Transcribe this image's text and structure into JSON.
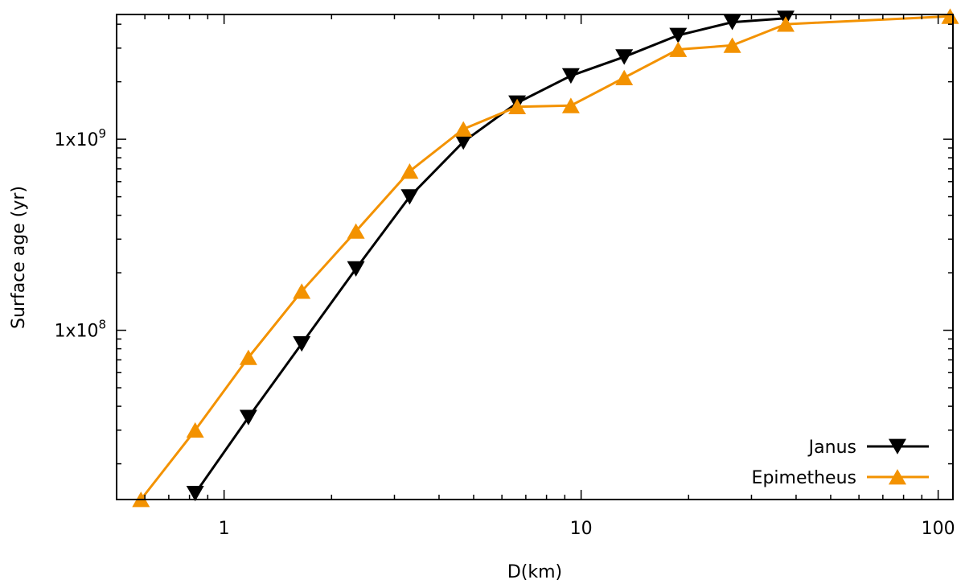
{
  "chart_data": {
    "type": "line",
    "title": "",
    "xlabel": "D(km)",
    "ylabel": "Surface age (yr)",
    "x_scale": "log",
    "y_scale": "log",
    "xlim": [
      0.5,
      110
    ],
    "ylim": [
      13000000,
      4500000000
    ],
    "grid": false,
    "legend_position": "bottom-right",
    "x_ticks": [
      {
        "value": 1,
        "label": "1"
      },
      {
        "value": 10,
        "label": "10"
      },
      {
        "value": 100,
        "label": "100"
      }
    ],
    "y_ticks": [
      {
        "value": 100000000,
        "base": "1x10",
        "exp": "8"
      },
      {
        "value": 1000000000,
        "base": "1x10",
        "exp": "9"
      }
    ],
    "series": [
      {
        "name": "Janus",
        "color": "#000000",
        "marker": "triangle-down",
        "points": [
          {
            "x": 0.83,
            "y": 14000000
          },
          {
            "x": 1.17,
            "y": 35000000
          },
          {
            "x": 1.65,
            "y": 85000000
          },
          {
            "x": 2.34,
            "y": 210000000
          },
          {
            "x": 3.31,
            "y": 500000000
          },
          {
            "x": 4.68,
            "y": 970000000
          },
          {
            "x": 6.62,
            "y": 1550000000
          },
          {
            "x": 9.36,
            "y": 2150000000
          },
          {
            "x": 13.2,
            "y": 2700000000
          },
          {
            "x": 18.7,
            "y": 3500000000
          },
          {
            "x": 26.5,
            "y": 4100000000
          },
          {
            "x": 37.4,
            "y": 4300000000
          }
        ]
      },
      {
        "name": "Epimetheus",
        "color": "#f39200",
        "marker": "triangle-up",
        "points": [
          {
            "x": 0.585,
            "y": 13000000
          },
          {
            "x": 0.83,
            "y": 30000000
          },
          {
            "x": 1.17,
            "y": 72000000
          },
          {
            "x": 1.65,
            "y": 160000000
          },
          {
            "x": 2.34,
            "y": 330000000
          },
          {
            "x": 3.31,
            "y": 680000000
          },
          {
            "x": 4.68,
            "y": 1130000000
          },
          {
            "x": 6.62,
            "y": 1480000000
          },
          {
            "x": 9.36,
            "y": 1500000000
          },
          {
            "x": 13.2,
            "y": 2100000000
          },
          {
            "x": 18.7,
            "y": 2950000000
          },
          {
            "x": 26.5,
            "y": 3100000000
          },
          {
            "x": 37.4,
            "y": 4000000000
          },
          {
            "x": 108,
            "y": 4400000000
          }
        ]
      }
    ]
  }
}
